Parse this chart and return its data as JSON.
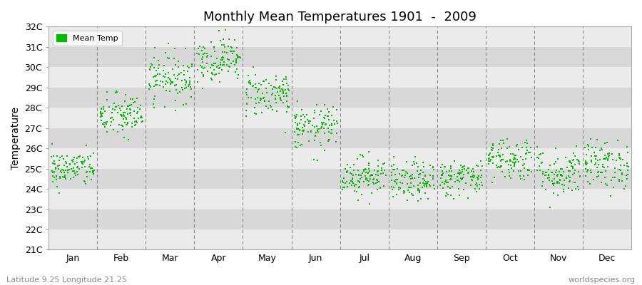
{
  "title": "Monthly Mean Temperatures 1901  -  2009",
  "ylabel": "Temperature",
  "ytick_labels": [
    "21C",
    "22C",
    "23C",
    "24C",
    "25C",
    "26C",
    "27C",
    "28C",
    "29C",
    "30C",
    "31C",
    "32C"
  ],
  "ytick_values": [
    21,
    22,
    23,
    24,
    25,
    26,
    27,
    28,
    29,
    30,
    31,
    32
  ],
  "ylim": [
    21,
    32
  ],
  "month_names": [
    "Jan",
    "Feb",
    "Mar",
    "Apr",
    "May",
    "Jun",
    "Jul",
    "Aug",
    "Sep",
    "Oct",
    "Nov",
    "Dec"
  ],
  "dot_color": "#00bb00",
  "dot_size": 3,
  "bg_color": "#ffffff",
  "plot_bg_light": "#ebebeb",
  "plot_bg_dark": "#d8d8d8",
  "legend_label": "Mean Temp",
  "subtitle": "Latitude 9.25 Longitude 21.25",
  "watermark": "worldspecies.org",
  "monthly_means": [
    25.0,
    27.6,
    29.5,
    30.4,
    28.7,
    27.0,
    24.65,
    24.35,
    24.55,
    25.5,
    24.8,
    25.2
  ],
  "monthly_stds": [
    0.45,
    0.55,
    0.6,
    0.55,
    0.55,
    0.55,
    0.48,
    0.48,
    0.45,
    0.55,
    0.6,
    0.6
  ],
  "n_years": 109,
  "vline_color": "#888888",
  "vline_lw": 0.8
}
